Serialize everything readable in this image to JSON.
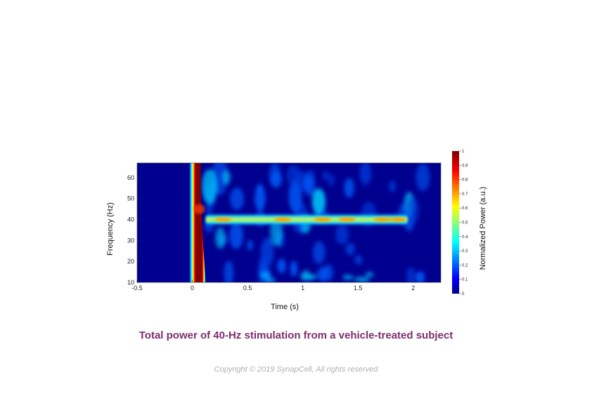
{
  "caption": "Total power of 40-Hz stimulation from a vehicle-treated subject",
  "copyright": "Copyright © 2019 SynapCell, All rights reserved",
  "colors": {
    "caption": "#7b2d6c",
    "copyright": "#b0b0b0",
    "colormap": "jet"
  },
  "chart_data": {
    "type": "heatmap",
    "title": "",
    "xlabel": "Time (s)",
    "ylabel": "Frequency (Hz)",
    "colorbar_label": "Normalized Power (a.u.)",
    "xlim": [
      -0.5,
      2.25
    ],
    "ylim": [
      10,
      67
    ],
    "clim": [
      0,
      1
    ],
    "x_ticks": [
      -0.5,
      0,
      0.5,
      1,
      1.5,
      2
    ],
    "x_tick_labels": [
      "-0.5",
      "0",
      "0.5",
      "1",
      "1.5",
      "2"
    ],
    "y_ticks": [
      10,
      20,
      30,
      40,
      50,
      60
    ],
    "y_tick_labels": [
      "10",
      "20",
      "30",
      "40",
      "50",
      "60"
    ],
    "colorbar_ticks": [
      0,
      0.1,
      0.2,
      0.3,
      0.4,
      0.5,
      0.6,
      0.7,
      0.8,
      0.9,
      1
    ],
    "colorbar_tick_labels": [
      "0",
      "0.1",
      "0.2",
      "0.3",
      "0.4",
      "0.5",
      "0.6",
      "0.7",
      "0.8",
      "0.9",
      "1"
    ],
    "features": [
      {
        "name": "Stimulus onset broadband response",
        "time_range_s": [
          0.0,
          0.12
        ],
        "freq_range_hz": [
          10,
          67
        ],
        "power": 1.0
      },
      {
        "name": "40-Hz steady-state response",
        "time_range_s": [
          0.12,
          1.95
        ],
        "freq_hz": 40,
        "power_range": [
          0.45,
          0.75
        ]
      }
    ]
  }
}
